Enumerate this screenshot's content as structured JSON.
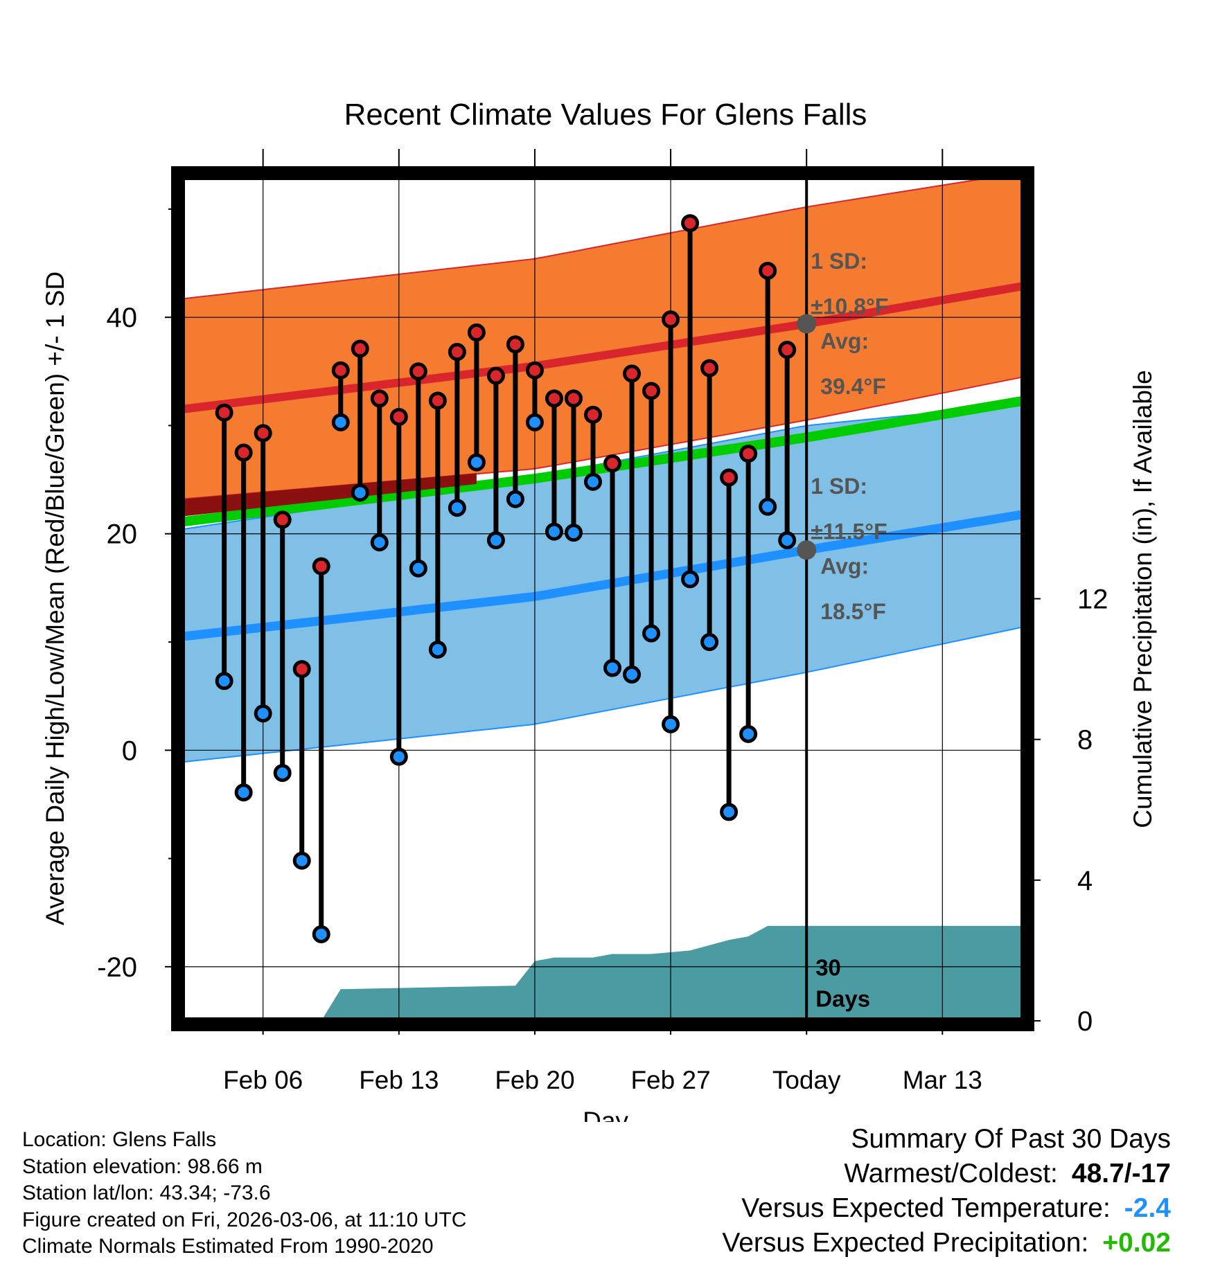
{
  "chart_data": {
    "type": "line",
    "title": "Recent Climate Values For Glens Falls",
    "xlabel": "Day",
    "ylabel_left": "Average Daily High/Low/Mean (Red/Blue/Green) +/- 1 SD",
    "ylabel_right": "Cumulative Precipitation (in), If Available",
    "x_range_days": [
      -32.2,
      11.2
    ],
    "ylim": [
      -25,
      53
    ],
    "ylim_right": [
      0,
      24
    ],
    "grid": true,
    "x_ticks": [
      {
        "day": -28,
        "label": "Feb 06"
      },
      {
        "day": -21,
        "label": "Feb 13"
      },
      {
        "day": -14,
        "label": "Feb 20"
      },
      {
        "day": -7,
        "label": "Feb 27"
      },
      {
        "day": 0,
        "label": "Today"
      },
      {
        "day": 7,
        "label": "Mar 13"
      }
    ],
    "y_ticks_left": [
      -20,
      0,
      20,
      40
    ],
    "y_ticks_right": [
      0,
      4,
      8,
      12
    ],
    "normals": {
      "day": [
        -32.2,
        -14,
        0,
        11.2
      ],
      "high_avg": [
        31.5,
        35.5,
        39.4,
        42.9
      ],
      "high_upper": [
        41.7,
        45.4,
        50.2,
        53.4
      ],
      "high_lower": [
        23.2,
        26.0,
        30.5,
        34.5
      ],
      "low_avg": [
        10.5,
        14.2,
        18.5,
        21.8
      ],
      "low_upper": [
        20.4,
        25.3,
        30.0,
        32.0
      ],
      "low_lower": [
        -1.1,
        2.4,
        7.2,
        11.4
      ],
      "mean": [
        21.1,
        25.1,
        28.9,
        32.3
      ]
    },
    "daily": {
      "day": [
        -30,
        -29,
        -28,
        -27,
        -26,
        -25,
        -24,
        -23,
        -22,
        -21,
        -20,
        -19,
        -18,
        -17,
        -16,
        -15,
        -14,
        -13,
        -12,
        -11,
        -10,
        -9,
        -8,
        -7,
        -6,
        -5,
        -4,
        -3,
        -2,
        -1
      ],
      "high": [
        31.2,
        27.5,
        29.3,
        21.3,
        7.5,
        17.0,
        35.1,
        37.1,
        32.5,
        30.8,
        35.0,
        32.3,
        36.8,
        38.6,
        34.6,
        37.5,
        35.1,
        32.5,
        32.5,
        31.0,
        26.5,
        34.8,
        33.2,
        39.8,
        48.7,
        35.3,
        25.2,
        27.4,
        44.3,
        37.0
      ],
      "low": [
        6.4,
        -3.9,
        3.4,
        -2.1,
        -10.2,
        -17.0,
        30.3,
        23.8,
        19.2,
        -0.6,
        16.8,
        9.3,
        22.4,
        26.6,
        19.4,
        23.2,
        30.3,
        20.2,
        20.1,
        24.8,
        7.6,
        7.0,
        10.8,
        2.4,
        15.8,
        10.0,
        -5.7,
        1.5,
        22.5,
        19.4
      ]
    },
    "precip_cumulative": {
      "day": [
        -25,
        -24,
        -15,
        -14,
        -13,
        -11,
        -10,
        -9,
        -8,
        -6,
        -4,
        -3,
        -2,
        -1,
        11.2
      ],
      "value": [
        0,
        0.9,
        1.0,
        1.7,
        1.8,
        1.8,
        1.9,
        1.9,
        1.9,
        2.0,
        2.3,
        2.4,
        2.7,
        2.7,
        2.7
      ]
    },
    "annotations": {
      "high_sd": "1 SD:",
      "high_sd_value": "±10.8°F",
      "high_avg_label": "Avg:",
      "high_avg_value": "39.4°F",
      "low_sd": "1 SD:",
      "low_sd_value": "±11.5°F",
      "low_avg_label": "Avg:",
      "low_avg_value": "18.5°F",
      "period_number": "30",
      "period_unit": "Days",
      "high_avg_marker": 39.4,
      "low_avg_marker": 18.5
    },
    "colors": {
      "high_band": "#f47b30",
      "high_line": "#d9262c",
      "low_band": "#80c0e6",
      "low_line": "#1e90ff",
      "mean_line": "#00cc00",
      "precip": "#4a9ba2",
      "marker_high": "#d9262c",
      "marker_low": "#1e90ff",
      "annotation": "#555555"
    }
  },
  "info": {
    "location": "Location: Glens Falls",
    "elevation": "Station elevation: 98.66 m",
    "latlon": "Station lat/lon: 43.34; -73.6",
    "created": "Figure created on Fri, 2026-03-06, at 11:10 UTC",
    "normals": "Climate Normals Estimated From 1990-2020"
  },
  "summary": {
    "title": "Summary Of Past 30 Days",
    "warm_cold_label": "Warmest/Coldest:",
    "warm_cold_value": "48.7/-17",
    "temp_label": "Versus Expected Temperature:",
    "temp_value": "-2.4",
    "temp_color": "#1e90ff",
    "precip_label": "Versus Expected Precipitation:",
    "precip_value": "+0.02",
    "precip_color": "#22bb00"
  }
}
